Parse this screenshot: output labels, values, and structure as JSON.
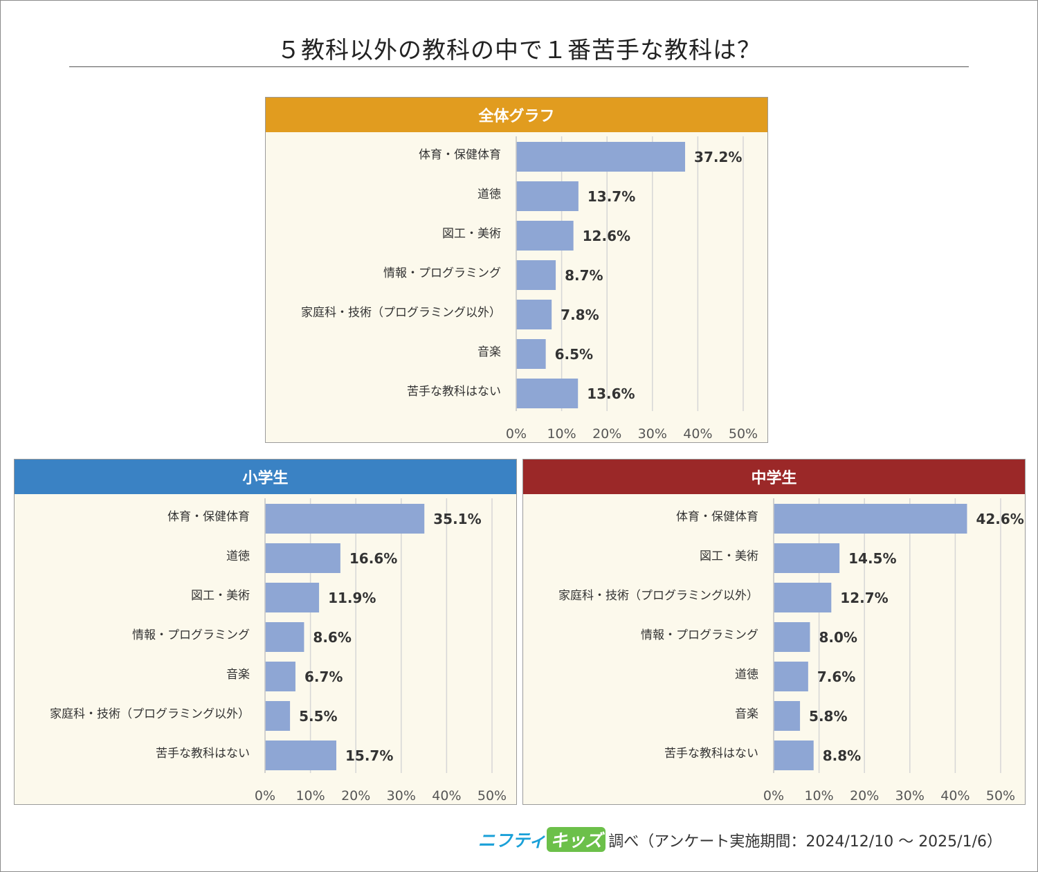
{
  "title": "５教科以外の教科の中で１番苦手な教科は？",
  "footer": {
    "brand_a": "ニフティ",
    "brand_b": "キッズ",
    "note": "調べ（アンケート実施期間：2024/12/10 ～ 2025/1/6）"
  },
  "colors": {
    "bar": "#8ea6d4",
    "header_all": "#e19c1f",
    "header_elementary": "#3a82c4",
    "header_junior_high": "#9b2828",
    "panel_bg": "#fcf9ec",
    "grid": "#d6d6d6"
  },
  "chart_data": [
    {
      "type": "bar",
      "orientation": "horizontal",
      "title": "全体グラフ",
      "categories": [
        "体育・保健体育",
        "道徳",
        "図工・美術",
        "情報・プログラミング",
        "家庭科・技術（プログラミング以外）",
        "音楽",
        "苦手な教科はない"
      ],
      "values": [
        37.2,
        13.7,
        12.6,
        8.7,
        7.8,
        6.5,
        13.6
      ],
      "value_labels": [
        "37.2%",
        "13.7%",
        "12.6%",
        "8.7%",
        "7.8%",
        "6.5%",
        "13.6%"
      ],
      "xlim": [
        0,
        50
      ],
      "ticks": [
        "0%",
        "10%",
        "20%",
        "30%",
        "40%",
        "50%"
      ],
      "grid": true
    },
    {
      "type": "bar",
      "orientation": "horizontal",
      "title": "小学生",
      "categories": [
        "体育・保健体育",
        "道徳",
        "図工・美術",
        "情報・プログラミング",
        "音楽",
        "家庭科・技術（プログラミング以外）",
        "苦手な教科はない"
      ],
      "values": [
        35.1,
        16.6,
        11.9,
        8.6,
        6.7,
        5.5,
        15.7
      ],
      "value_labels": [
        "35.1%",
        "16.6%",
        "11.9%",
        "8.6%",
        "6.7%",
        "5.5%",
        "15.7%"
      ],
      "xlim": [
        0,
        50
      ],
      "ticks": [
        "0%",
        "10%",
        "20%",
        "30%",
        "40%",
        "50%"
      ],
      "grid": true
    },
    {
      "type": "bar",
      "orientation": "horizontal",
      "title": "中学生",
      "categories": [
        "体育・保健体育",
        "図工・美術",
        "家庭科・技術（プログラミング以外）",
        "情報・プログラミング",
        "道徳",
        "音楽",
        "苦手な教科はない"
      ],
      "values": [
        42.6,
        14.5,
        12.7,
        8.0,
        7.6,
        5.8,
        8.8
      ],
      "value_labels": [
        "42.6%",
        "14.5%",
        "12.7%",
        "8.0%",
        "7.6%",
        "5.8%",
        "8.8%"
      ],
      "xlim": [
        0,
        50
      ],
      "ticks": [
        "0%",
        "10%",
        "20%",
        "30%",
        "40%",
        "50%"
      ],
      "grid": true
    }
  ]
}
